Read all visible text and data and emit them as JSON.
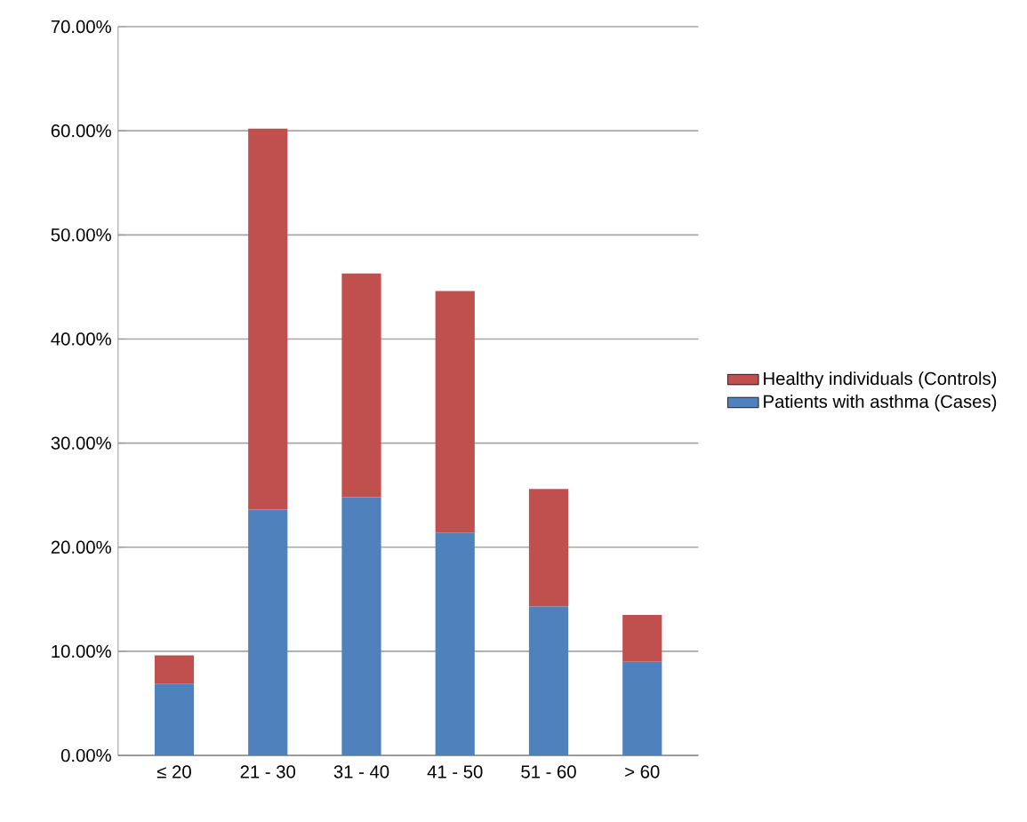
{
  "chart_data": {
    "type": "bar",
    "stacked": true,
    "categories": [
      "≤ 20",
      "21 - 30",
      "31 - 40",
      "41 - 50",
      "51 - 60",
      "> 60"
    ],
    "series": [
      {
        "name": "Patients with asthma (Cases)",
        "color": "#4f81bd",
        "values": [
          6.9,
          23.6,
          24.8,
          21.4,
          14.3,
          9.0
        ]
      },
      {
        "name": "Healthy individuals (Controls)",
        "color": "#c0504d",
        "values": [
          2.7,
          36.6,
          21.5,
          23.2,
          11.3,
          4.5
        ]
      }
    ],
    "ylim": [
      0,
      70
    ],
    "yticks": [
      {
        "value": 0,
        "label": "0.00%"
      },
      {
        "value": 10,
        "label": "10.00%"
      },
      {
        "value": 20,
        "label": "20.00%"
      },
      {
        "value": 30,
        "label": "30.00%"
      },
      {
        "value": 40,
        "label": "40.00%"
      },
      {
        "value": 50,
        "label": "50.00%"
      },
      {
        "value": 60,
        "label": "60.00%"
      },
      {
        "value": 70,
        "label": "70.00%"
      }
    ],
    "grid": "y",
    "legend": "right"
  }
}
